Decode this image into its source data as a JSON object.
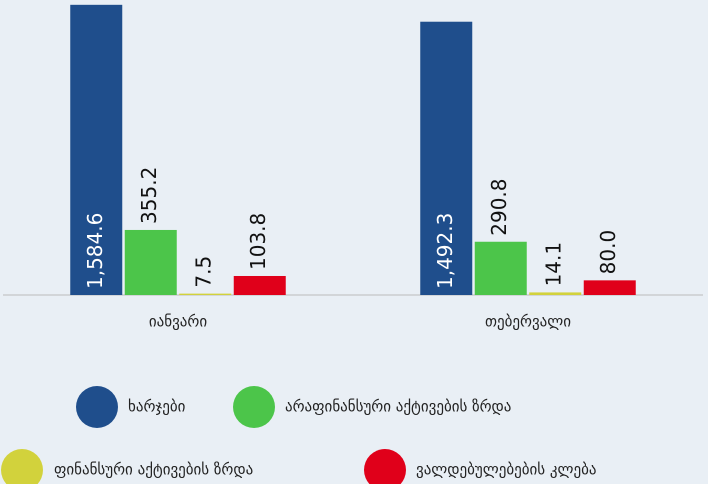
{
  "chart_data": {
    "type": "bar",
    "categories": [
      "იანვარი",
      "თებერვალი"
    ],
    "series": [
      {
        "name": "ხარჯები",
        "color": "#1f4e8c",
        "values": [
          1584.6,
          1492.3
        ],
        "value_labels": [
          "1,584.6",
          "1,492.3"
        ]
      },
      {
        "name": "არაფინანსური აქტივების ზრდა",
        "color": "#4cc54a",
        "values": [
          355.2,
          290.8
        ],
        "value_labels": [
          "355.2",
          "290.8"
        ]
      },
      {
        "name": "ფინანსური აქტივების ზრდა",
        "color": "#d2d23c",
        "values": [
          7.5,
          14.1
        ],
        "value_labels": [
          "7.5",
          "14.1"
        ]
      },
      {
        "name": "ვალდებულებების კლება",
        "color": "#e0001a",
        "values": [
          103.8,
          80.0
        ],
        "value_labels": [
          "103.8",
          "80.0"
        ]
      }
    ],
    "ylim": [
      0,
      1600
    ],
    "legend": "bottom"
  }
}
